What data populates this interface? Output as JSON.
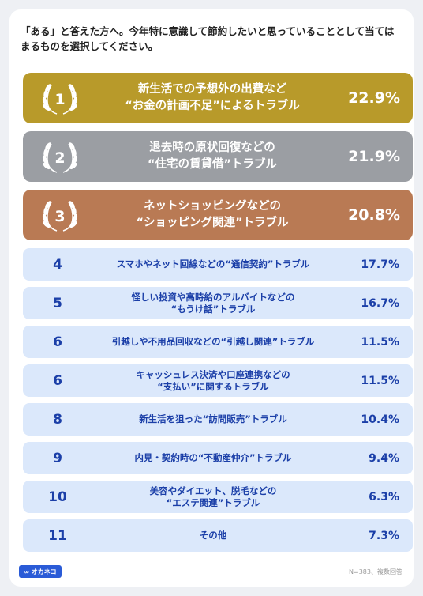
{
  "question": "「ある」と答えた方へ。今年特に意識して節約したいと思っていることとして当てはまるものを選択してください。",
  "chart_data": {
    "type": "bar",
    "title": "",
    "unit": "%",
    "items": [
      {
        "rank": "1",
        "label": "新生活での予想外の出費など\n“お金の計画不足”によるトラブル",
        "value": 22.9,
        "display": "22.9%"
      },
      {
        "rank": "2",
        "label": "退去時の原状回復などの\n“住宅の賃貸借”トラブル",
        "value": 21.9,
        "display": "21.9%"
      },
      {
        "rank": "3",
        "label": "ネットショッピングなどの\n“ショッピング関連”トラブル",
        "value": 20.8,
        "display": "20.8%"
      },
      {
        "rank": "4",
        "label": "スマホやネット回線などの“通信契約”トラブル",
        "value": 17.7,
        "display": "17.7%"
      },
      {
        "rank": "5",
        "label": "怪しい投資や高時給のアルバイトなどの\n“もうけ話”トラブル",
        "value": 16.7,
        "display": "16.7%"
      },
      {
        "rank": "6",
        "label": "引越しや不用品回収などの“引越し関連”トラブル",
        "value": 11.5,
        "display": "11.5%"
      },
      {
        "rank": "6",
        "label": "キャッシュレス決済や口座連携などの\n“支払い”に関するトラブル",
        "value": 11.5,
        "display": "11.5%"
      },
      {
        "rank": "8",
        "label": "新生活を狙った“訪問販売”トラブル",
        "value": 10.4,
        "display": "10.4%"
      },
      {
        "rank": "9",
        "label": "内見・契約時の“不動産仲介”トラブル",
        "value": 9.4,
        "display": "9.4%"
      },
      {
        "rank": "10",
        "label": "美容やダイエット、脱毛などの\n“エステ関連”トラブル",
        "value": 6.3,
        "display": "6.3%"
      },
      {
        "rank": "11",
        "label": "その他",
        "value": 7.3,
        "display": "7.3%"
      }
    ]
  },
  "footer": {
    "logo": "∞ オカネコ",
    "note": "N=383、複数回答"
  },
  "colors": {
    "gold": "#b89a2a",
    "silver": "#9b9ea3",
    "bronze": "#b97a54",
    "row_bg": "#dbe8fb",
    "row_text": "#1b3fa8"
  }
}
